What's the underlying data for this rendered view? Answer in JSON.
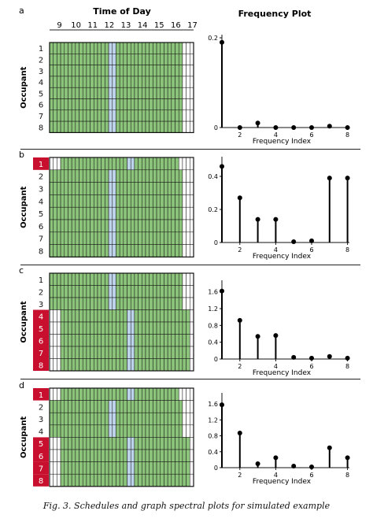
{
  "figure": {
    "schedule_title": "Time of Day",
    "frequency_title": "Frequency Plot",
    "caption": "Fig. 3. Schedules and graph spectral plots for simulated example",
    "ylabel_schedule": "Occupant",
    "xlabel_frequency": "Frequency Index",
    "hours": [
      "9",
      "10",
      "11",
      "12",
      "13",
      "14",
      "15",
      "16",
      "17"
    ],
    "occupants": [
      "1",
      "2",
      "3",
      "4",
      "5",
      "6",
      "7",
      "8"
    ],
    "colors": {
      "work": "#8cc37a",
      "break": "#bdd3ea",
      "absent": "#ffffff",
      "highlight": "#c8102e",
      "stem": "#000000"
    }
  },
  "chart_data": [
    {
      "panel": "a",
      "type": "heatmap",
      "highlighted_occupants": [],
      "rows": [
        "WWWWWWWWWWWWWWWWBBWWWWWWWWWWWWWWWWWWXXX",
        "WWWWWWWWWWWWWWWWBBWWWWWWWWWWWWWWWWWWXXX",
        "WWWWWWWWWWWWWWWWBBWWWWWWWWWWWWWWWWWWXXX",
        "WWWWWWWWWWWWWWWWBBWWWWWWWWWWWWWWWWWWXXX",
        "WWWWWWWWWWWWWWWWBBWWWWWWWWWWWWWWWWWWXXX",
        "WWWWWWWWWWWWWWWWBBWWWWWWWWWWWWWWWWWWXXX",
        "WWWWWWWWWWWWWWWWBBWWWWWWWWWWWWWWWWWWXXX",
        "WWWWWWWWWWWWWWWWBBWWWWWWWWWWWWWWWWWWXXX"
      ]
    },
    {
      "panel": "a",
      "type": "scatter",
      "style": "stem",
      "x": [
        1,
        2,
        3,
        4,
        5,
        6,
        7,
        8
      ],
      "y": [
        0.19,
        0.0,
        0.01,
        0.0,
        0.0,
        0.0,
        0.003,
        0.0
      ],
      "ylim": [
        0,
        0.2
      ],
      "yticks": [
        "0",
        "0.2"
      ],
      "yticks_values": [
        0,
        0.2
      ],
      "xticks": [
        "2",
        "4",
        "6",
        "8"
      ],
      "xlabel": "Frequency Index"
    },
    {
      "panel": "b",
      "type": "heatmap",
      "highlighted_occupants": [
        "1"
      ],
      "rows": [
        "XXXWWWWWWWWWWWWWWWWWWBBWWWWWWWWWWWWXXXX",
        "WWWWWWWWWWWWWWWWBBWWWWWWWWWWWWWWWWWWXXX",
        "WWWWWWWWWWWWWWWWBBWWWWWWWWWWWWWWWWWWXXX",
        "WWWWWWWWWWWWWWWWBBWWWWWWWWWWWWWWWWWWXXX",
        "WWWWWWWWWWWWWWWWBBWWWWWWWWWWWWWWWWWWXXX",
        "WWWWWWWWWWWWWWWWBBWWWWWWWWWWWWWWWWWWXXX",
        "WWWWWWWWWWWWWWWWBBWWWWWWWWWWWWWWWWWWXXX",
        "WWWWWWWWWWWWWWWWBBWWWWWWWWWWWWWWWWWWXXX"
      ]
    },
    {
      "panel": "b",
      "type": "scatter",
      "style": "stem",
      "x": [
        1,
        2,
        3,
        4,
        5,
        6,
        7,
        8
      ],
      "y": [
        0.46,
        0.27,
        0.14,
        0.14,
        0.005,
        0.01,
        0.39,
        0.39
      ],
      "ylim": [
        0,
        0.5
      ],
      "yticks": [
        "0",
        "0.2",
        "0.4"
      ],
      "yticks_values": [
        0,
        0.2,
        0.4
      ],
      "xticks": [
        "2",
        "4",
        "6",
        "8"
      ],
      "xlabel": "Frequency Index"
    },
    {
      "panel": "c",
      "type": "heatmap",
      "highlighted_occupants": [
        "4",
        "5",
        "6",
        "7",
        "8"
      ],
      "rows": [
        "WWWWWWWWWWWWWWWWBBWWWWWWWWWWWWWWWWWWXXX",
        "WWWWWWWWWWWWWWWWBBWWWWWWWWWWWWWWWWWWXXX",
        "WWWWWWWWWWWWWWWWBBWWWWWWWWWWWWWWWWWWXXX",
        "XXXWWWWWWWWWWWWWWWWWWBBWWWWWWWWWWWWWWW",
        "XXXWWWWWWWWWWWWWWWWWWBBWWWWWWWWWWWWWWW",
        "XXXWWWWWWWWWWWWWWWWWWBBWWWWWWWWWWWWWWW",
        "XXXWWWWWWWWWWWWWWWWWWBBWWWWWWWWWWWWWWW",
        "XXXWWWWWWWWWWWWWWWWWWBBWWWWWWWWWWWWWWW"
      ]
    },
    {
      "panel": "c",
      "type": "scatter",
      "style": "stem",
      "x": [
        1,
        2,
        3,
        4,
        5,
        6,
        7,
        8
      ],
      "y": [
        1.62,
        0.92,
        0.54,
        0.56,
        0.04,
        0.02,
        0.06,
        0.02
      ],
      "ylim": [
        0,
        1.8
      ],
      "yticks": [
        "0",
        "0.4",
        "0.8",
        "1.2",
        "1.6"
      ],
      "yticks_values": [
        0,
        0.4,
        0.8,
        1.2,
        1.6
      ],
      "xticks": [
        "2",
        "4",
        "6",
        "8"
      ],
      "xlabel": "Frequency Index"
    },
    {
      "panel": "d",
      "type": "heatmap",
      "highlighted_occupants": [
        "1",
        "5",
        "6",
        "7",
        "8"
      ],
      "rows": [
        "XXXWWWWWWWWWWWWWWWWWWBBWWWWWWWWWWWWXXXX",
        "WWWWWWWWWWWWWWWWBBWWWWWWWWWWWWWWWWWWXXX",
        "WWWWWWWWWWWWWWWWBBWWWWWWWWWWWWWWWWWWXXX",
        "WWWWWWWWWWWWWWWWBBWWWWWWWWWWWWWWWWWWXXX",
        "XXXWWWWWWWWWWWWWWWWWWBBWWWWWWWWWWWWWWW",
        "XXXWWWWWWWWWWWWWWWWWWBBWWWWWWWWWWWWWWW",
        "XXXWWWWWWWWWWWWWWWWWWBBWWWWWWWWWWWWWWW",
        "XXXWWWWWWWWWWWWWWWWWWBBWWWWWWWWWWWWWWW"
      ]
    },
    {
      "panel": "d",
      "type": "scatter",
      "style": "stem",
      "x": [
        1,
        2,
        3,
        4,
        5,
        6,
        7,
        8
      ],
      "y": [
        1.58,
        0.87,
        0.1,
        0.25,
        0.04,
        0.02,
        0.5,
        0.25
      ],
      "ylim": [
        0,
        1.8
      ],
      "yticks": [
        "0",
        "0.4",
        "0.8",
        "1.2",
        "1.6"
      ],
      "yticks_values": [
        0,
        0.4,
        0.8,
        1.2,
        1.6
      ],
      "xticks": [
        "2",
        "4",
        "6",
        "8"
      ],
      "xlabel": "Frequency Index"
    }
  ]
}
